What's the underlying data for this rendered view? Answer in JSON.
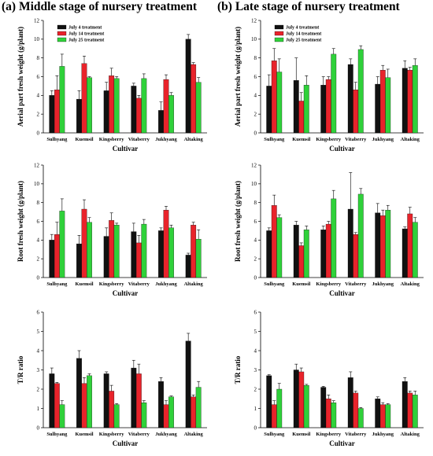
{
  "titles": {
    "left": "(a) Middle stage of nursery treatment",
    "right": "(b) Late stage of nursery treatment"
  },
  "colors": {
    "July 4 treatment": "#111111",
    "July 14 treatment": "#e8232b",
    "July 25 treatment": "#2fd13a",
    "axis": "#000000"
  },
  "chart_data": [
    {
      "id": "a-aerial",
      "type": "bar",
      "title": "",
      "xlabel": "Cultivar",
      "ylabel": "Aerial part fresh weight (g/plant)",
      "ylim": [
        0,
        12
      ],
      "yticks": [
        0,
        2,
        4,
        6,
        8,
        10,
        12
      ],
      "categories": [
        "Sulhyang",
        "Kuemsil",
        "Kingsberry",
        "Vitaberry",
        "Jukhyang",
        "Altaking"
      ],
      "legend": {
        "show": true,
        "position": "top-left"
      },
      "series": [
        {
          "name": "July 4 treatment",
          "values": [
            4.0,
            3.6,
            4.5,
            5.0,
            2.4,
            10.0
          ],
          "errors": [
            0.5,
            0.9,
            0.9,
            0.3,
            0.9,
            0.5
          ]
        },
        {
          "name": "July 14 treatment",
          "values": [
            4.6,
            7.4,
            6.1,
            3.7,
            5.7,
            7.3
          ],
          "errors": [
            1.5,
            0.8,
            0.8,
            0.3,
            0.5,
            0.2
          ]
        },
        {
          "name": "July 25 treatment",
          "values": [
            7.1,
            5.9,
            5.8,
            5.8,
            4.0,
            5.4
          ],
          "errors": [
            1.3,
            0.1,
            0.2,
            0.5,
            0.3,
            0.5
          ]
        }
      ]
    },
    {
      "id": "b-aerial",
      "type": "bar",
      "title": "",
      "xlabel": "Cultivar",
      "ylabel": "Aerial part fresh weight (g/plant)",
      "ylim": [
        0,
        12
      ],
      "yticks": [
        0,
        2,
        4,
        6,
        8,
        10,
        12
      ],
      "categories": [
        "Sulhyang",
        "Kuemsil",
        "Kingsberry",
        "Vitaberry",
        "Jukhyang",
        "Altaking"
      ],
      "legend": {
        "show": true,
        "position": "top-left"
      },
      "series": [
        {
          "name": "July 4 treatment",
          "values": [
            5.0,
            5.6,
            5.1,
            7.3,
            5.2,
            6.9
          ],
          "errors": [
            1.2,
            2.4,
            0.9,
            0.6,
            0.8,
            0.8
          ]
        },
        {
          "name": "July 14 treatment",
          "values": [
            7.7,
            3.4,
            5.7,
            4.6,
            6.7,
            6.7
          ],
          "errors": [
            1.3,
            0.9,
            0.3,
            0.8,
            0.5,
            0.3
          ]
        },
        {
          "name": "July 25 treatment",
          "values": [
            6.5,
            5.1,
            8.4,
            8.9,
            5.9,
            7.2
          ],
          "errors": [
            1.4,
            1.0,
            0.6,
            0.4,
            0.9,
            0.7
          ]
        }
      ]
    },
    {
      "id": "a-root",
      "type": "bar",
      "title": "",
      "xlabel": "Cultivar",
      "ylabel": "Root fresh weight (g/plant)",
      "ylim": [
        0,
        12
      ],
      "yticks": [
        0,
        2,
        4,
        6,
        8,
        10,
        12
      ],
      "categories": [
        "Sulhyang",
        "Kuemsil",
        "Kingsberry",
        "Vitaberry",
        "Jukhyang",
        "Altaking"
      ],
      "legend": {
        "show": false,
        "position": ""
      },
      "series": [
        {
          "name": "July 4 treatment",
          "values": [
            4.0,
            3.6,
            4.4,
            4.9,
            5.0,
            2.4
          ],
          "errors": [
            0.6,
            0.9,
            0.9,
            0.9,
            0.3,
            0.2
          ]
        },
        {
          "name": "July 14 treatment",
          "values": [
            4.6,
            7.3,
            6.1,
            3.7,
            7.2,
            5.6
          ],
          "errors": [
            1.3,
            1.0,
            0.8,
            0.8,
            0.4,
            0.3
          ]
        },
        {
          "name": "July 25 treatment",
          "values": [
            7.1,
            5.9,
            5.6,
            5.7,
            5.3,
            4.1
          ],
          "errors": [
            1.3,
            0.5,
            0.2,
            0.5,
            0.3,
            1.0
          ]
        }
      ]
    },
    {
      "id": "b-root",
      "type": "bar",
      "title": "",
      "xlabel": "Cultivar",
      "ylabel": "Root fresh weight (g/plant)",
      "ylim": [
        0,
        12
      ],
      "yticks": [
        0,
        2,
        4,
        6,
        8,
        10,
        12
      ],
      "categories": [
        "Sulhyang",
        "Kuemsil",
        "Kingsberry",
        "Vitaberry",
        "Jukhyang",
        "Altaking"
      ],
      "legend": {
        "show": false,
        "position": ""
      },
      "series": [
        {
          "name": "July 4 treatment",
          "values": [
            5.0,
            5.6,
            5.1,
            7.3,
            6.9,
            5.2
          ],
          "errors": [
            0.3,
            0.4,
            0.4,
            3.9,
            1.0,
            0.2
          ]
        },
        {
          "name": "July 14 treatment",
          "values": [
            7.7,
            3.4,
            5.7,
            4.6,
            6.6,
            6.8
          ],
          "errors": [
            1.1,
            0.3,
            0.3,
            0.2,
            0.6,
            0.7
          ]
        },
        {
          "name": "July 25 treatment",
          "values": [
            6.4,
            5.1,
            8.4,
            8.9,
            7.2,
            5.9
          ],
          "errors": [
            0.3,
            0.4,
            0.9,
            0.6,
            0.5,
            0.5
          ]
        }
      ]
    },
    {
      "id": "a-tr",
      "type": "bar",
      "title": "",
      "xlabel": "Cultivar",
      "ylabel": "T/R ratio",
      "ylim": [
        0,
        6
      ],
      "yticks": [
        0,
        1,
        2,
        3,
        4,
        5,
        6
      ],
      "categories": [
        "Sulhyang",
        "Kuemsil",
        "Kingsberry",
        "Vitaberry",
        "Jukhyang",
        "Altaking"
      ],
      "legend": {
        "show": false,
        "position": ""
      },
      "series": [
        {
          "name": "July 4 treatment",
          "values": [
            2.8,
            3.6,
            2.8,
            3.1,
            2.4,
            4.5
          ],
          "errors": [
            0.3,
            0.4,
            0.1,
            0.4,
            0.2,
            0.4
          ]
        },
        {
          "name": "July 14 treatment",
          "values": [
            2.3,
            2.3,
            1.9,
            2.8,
            1.2,
            1.6
          ],
          "errors": [
            0.05,
            0.3,
            0.3,
            0.5,
            0.2,
            0.1
          ]
        },
        {
          "name": "July 25 treatment",
          "values": [
            1.2,
            2.7,
            1.2,
            1.3,
            1.6,
            2.1
          ],
          "errors": [
            0.2,
            0.1,
            0.05,
            0.1,
            0.05,
            0.3
          ]
        }
      ]
    },
    {
      "id": "b-tr",
      "type": "bar",
      "title": "",
      "xlabel": "Cultivar",
      "ylabel": "T/R ratio",
      "ylim": [
        0,
        6
      ],
      "yticks": [
        0,
        1,
        2,
        3,
        4,
        5,
        6
      ],
      "categories": [
        "Sulhyang",
        "Kuemsil",
        "Kingsberry",
        "Vitaberry",
        "Jukhyang",
        "Altaking"
      ],
      "legend": {
        "show": false,
        "position": ""
      },
      "series": [
        {
          "name": "July 4 treatment",
          "values": [
            2.7,
            3.0,
            2.1,
            2.6,
            1.5,
            2.4
          ],
          "errors": [
            0.05,
            0.3,
            0.05,
            0.3,
            0.1,
            0.2
          ]
        },
        {
          "name": "July 14 treatment",
          "values": [
            1.2,
            2.9,
            1.5,
            1.8,
            1.2,
            1.8
          ],
          "errors": [
            0.2,
            0.2,
            0.2,
            0.1,
            0.1,
            0.1
          ]
        },
        {
          "name": "July 25 treatment",
          "values": [
            2.0,
            2.2,
            1.3,
            1.0,
            1.2,
            1.7
          ],
          "errors": [
            0.3,
            0.05,
            0.1,
            0.05,
            0.05,
            0.2
          ]
        }
      ]
    }
  ]
}
